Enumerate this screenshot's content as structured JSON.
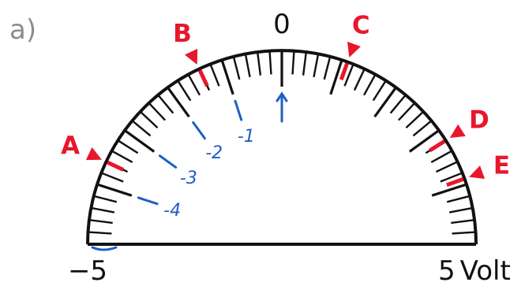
{
  "subfigure_label": "a)",
  "scale": {
    "min_label": "−5",
    "max_label": "5",
    "unit": "Volt",
    "zero_label": "0",
    "min_value": -5,
    "max_value": 5,
    "minor_ticks_total": 50
  },
  "markers": [
    {
      "label": "A",
      "value": -3.6
    },
    {
      "label": "B",
      "value": -1.4
    },
    {
      "label": "C",
      "value": 1.1
    },
    {
      "label": "D",
      "value": 3.2
    },
    {
      "label": "E",
      "value": 3.9
    }
  ],
  "handwritten": [
    {
      "text": "-1",
      "value": -1
    },
    {
      "text": "-2",
      "value": -2
    },
    {
      "text": "-3",
      "value": -3
    },
    {
      "text": "-4",
      "value": -4
    }
  ],
  "colors": {
    "scale": "#111111",
    "marker": "#e8172b",
    "handwriting": "#1f5fc4",
    "label_gray": "#8c8c8c"
  }
}
